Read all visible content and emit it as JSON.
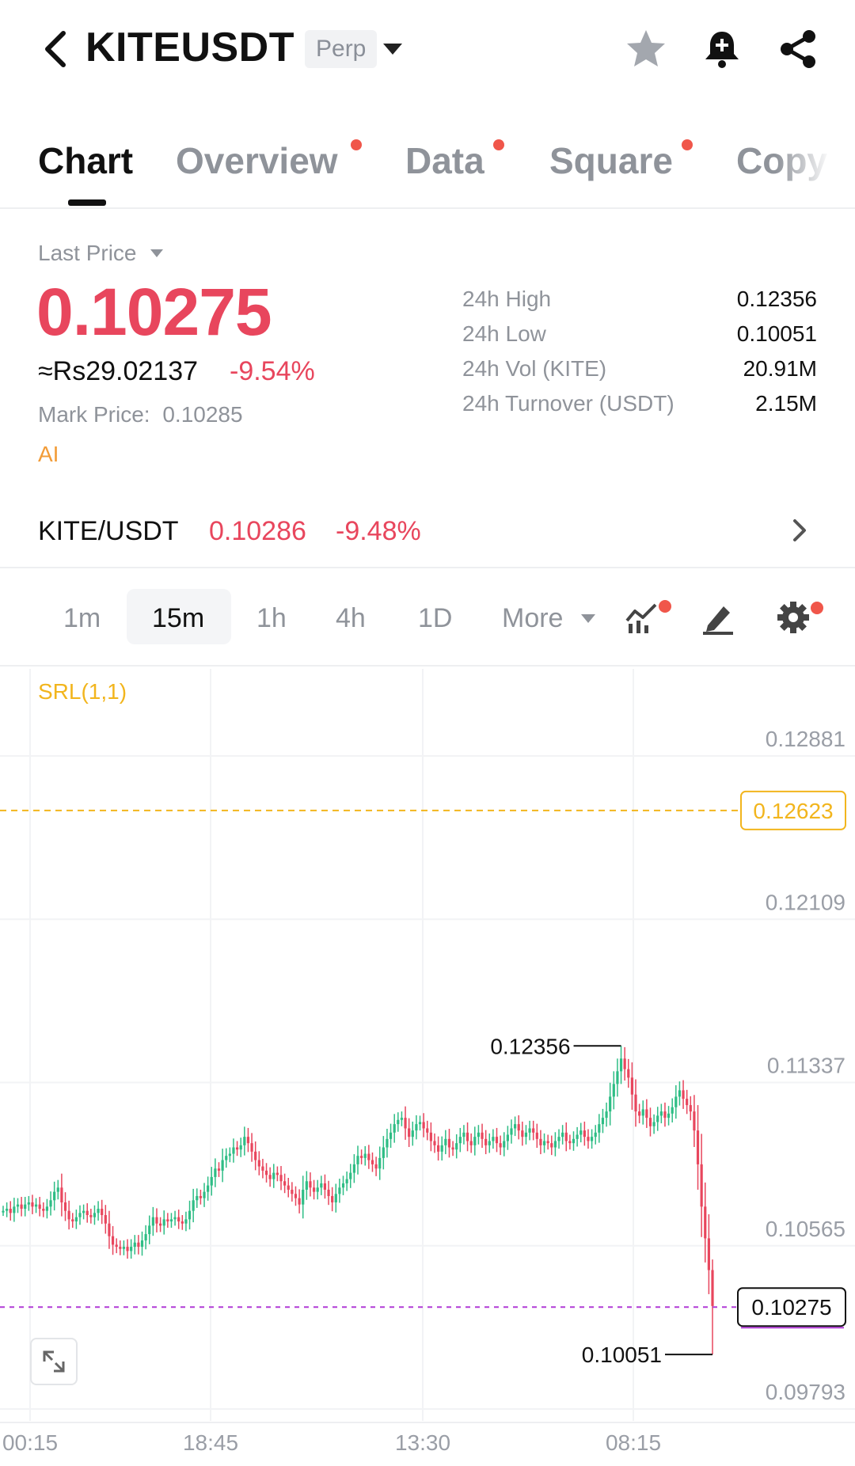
{
  "header": {
    "symbol": "KITEUSDT",
    "contract_type": "Perp"
  },
  "tabs": [
    {
      "label": "Chart",
      "active": true,
      "dot": false
    },
    {
      "label": "Overview",
      "active": false,
      "dot": true
    },
    {
      "label": "Data",
      "active": false,
      "dot": true
    },
    {
      "label": "Square",
      "active": false,
      "dot": true
    },
    {
      "label": "Copy",
      "active": false,
      "dot": false
    }
  ],
  "price": {
    "label": "Last Price",
    "last": "0.10275",
    "fiat": "≈Rs29.02137",
    "change_pct": "-9.54%",
    "mark_label": "Mark Price:",
    "mark_value": "0.10285",
    "ai_label": "AI"
  },
  "stats": [
    {
      "label": "24h High",
      "value": "0.12356"
    },
    {
      "label": "24h Low",
      "value": "0.10051"
    },
    {
      "label": "24h Vol (KITE)",
      "value": "20.91M"
    },
    {
      "label": "24h Turnover (USDT)",
      "value": "2.15M"
    }
  ],
  "spot": {
    "pair": "KITE/USDT",
    "price": "0.10286",
    "change_pct": "-9.48%"
  },
  "timeframes": [
    {
      "label": "1m",
      "active": false
    },
    {
      "label": "15m",
      "active": true
    },
    {
      "label": "1h",
      "active": false
    },
    {
      "label": "4h",
      "active": false
    },
    {
      "label": "1D",
      "active": false
    },
    {
      "label": "More",
      "active": false
    }
  ],
  "colors": {
    "up": "#2ebd85",
    "down": "#e8465d",
    "accent_red": "#e8465d",
    "srl": "#f2b51d",
    "current_line": "#b13bd6",
    "badge_dot": "#f0564a"
  },
  "chart_data": {
    "type": "candlestick",
    "indicator_label": "SRL(1,1)",
    "y_ticks": [
      "0.12881",
      "0.12109",
      "0.11337",
      "0.10565",
      "0.09793"
    ],
    "y_tick_values": [
      0.12881,
      0.12109,
      0.11337,
      0.10565,
      0.09793
    ],
    "x_ticks": [
      "00:15",
      "18:45",
      "13:30",
      "08:15"
    ],
    "srl_level": "0.12623",
    "current_price": "0.10275",
    "high_marker": "0.12356",
    "low_marker": "0.10051",
    "close_series": [
      0.1073,
      0.1074,
      0.1072,
      0.1075,
      0.1076,
      0.1074,
      0.1076,
      0.1077,
      0.1075,
      0.1076,
      0.1074,
      0.1073,
      0.1075,
      0.1078,
      0.1082,
      0.1084,
      0.1077,
      0.1073,
      0.1069,
      0.1068,
      0.107,
      0.1072,
      0.1073,
      0.1071,
      0.107,
      0.1072,
      0.1074,
      0.1071,
      0.1067,
      0.1061,
      0.1057,
      0.1056,
      0.1055,
      0.1056,
      0.1054,
      0.1056,
      0.1058,
      0.1056,
      0.1059,
      0.1062,
      0.1066,
      0.107,
      0.1067,
      0.1066,
      0.1069,
      0.1068,
      0.1069,
      0.107,
      0.1068,
      0.1067,
      0.1069,
      0.1073,
      0.1078,
      0.108,
      0.1079,
      0.1082,
      0.1085,
      0.1089,
      0.1093,
      0.1092,
      0.1097,
      0.1099,
      0.11,
      0.1103,
      0.1102,
      0.1104,
      0.1108,
      0.1105,
      0.1101,
      0.1097,
      0.1094,
      0.1092,
      0.109,
      0.1088,
      0.1091,
      0.109,
      0.1087,
      0.1085,
      0.1083,
      0.1081,
      0.1079,
      0.1076,
      0.1083,
      0.1087,
      0.1084,
      0.1082,
      0.1084,
      0.1086,
      0.1083,
      0.108,
      0.1077,
      0.1081,
      0.1084,
      0.1086,
      0.1088,
      0.1091,
      0.1095,
      0.1099,
      0.1098,
      0.11,
      0.1097,
      0.1095,
      0.1093,
      0.1098,
      0.1103,
      0.1107,
      0.111,
      0.1114,
      0.1116,
      0.1117,
      0.1112,
      0.1108,
      0.1111,
      0.1114,
      0.1115,
      0.1112,
      0.111,
      0.1106,
      0.1104,
      0.1101,
      0.1104,
      0.1107,
      0.1103,
      0.1102,
      0.1105,
      0.1108,
      0.111,
      0.1106,
      0.1104,
      0.1108,
      0.111,
      0.1107,
      0.1104,
      0.1106,
      0.1108,
      0.1105,
      0.1103,
      0.1106,
      0.1109,
      0.1112,
      0.1114,
      0.1111,
      0.1108,
      0.111,
      0.1112,
      0.111,
      0.1107,
      0.1104,
      0.1106,
      0.1105,
      0.1103,
      0.1106,
      0.1108,
      0.111,
      0.1106,
      0.1105,
      0.1107,
      0.1109,
      0.1111,
      0.1108,
      0.1106,
      0.1108,
      0.111,
      0.1114,
      0.1117,
      0.112,
      0.1127,
      0.1133,
      0.1139,
      0.1145,
      0.114,
      0.1136,
      0.1128,
      0.112,
      0.1118,
      0.1121,
      0.1117,
      0.1113,
      0.1115,
      0.1118,
      0.112,
      0.1117,
      0.1119,
      0.1122,
      0.1127,
      0.113,
      0.1126,
      0.1123,
      0.112,
      0.1111,
      0.1095,
      0.1075,
      0.106,
      0.1045,
      0.1028
    ]
  }
}
